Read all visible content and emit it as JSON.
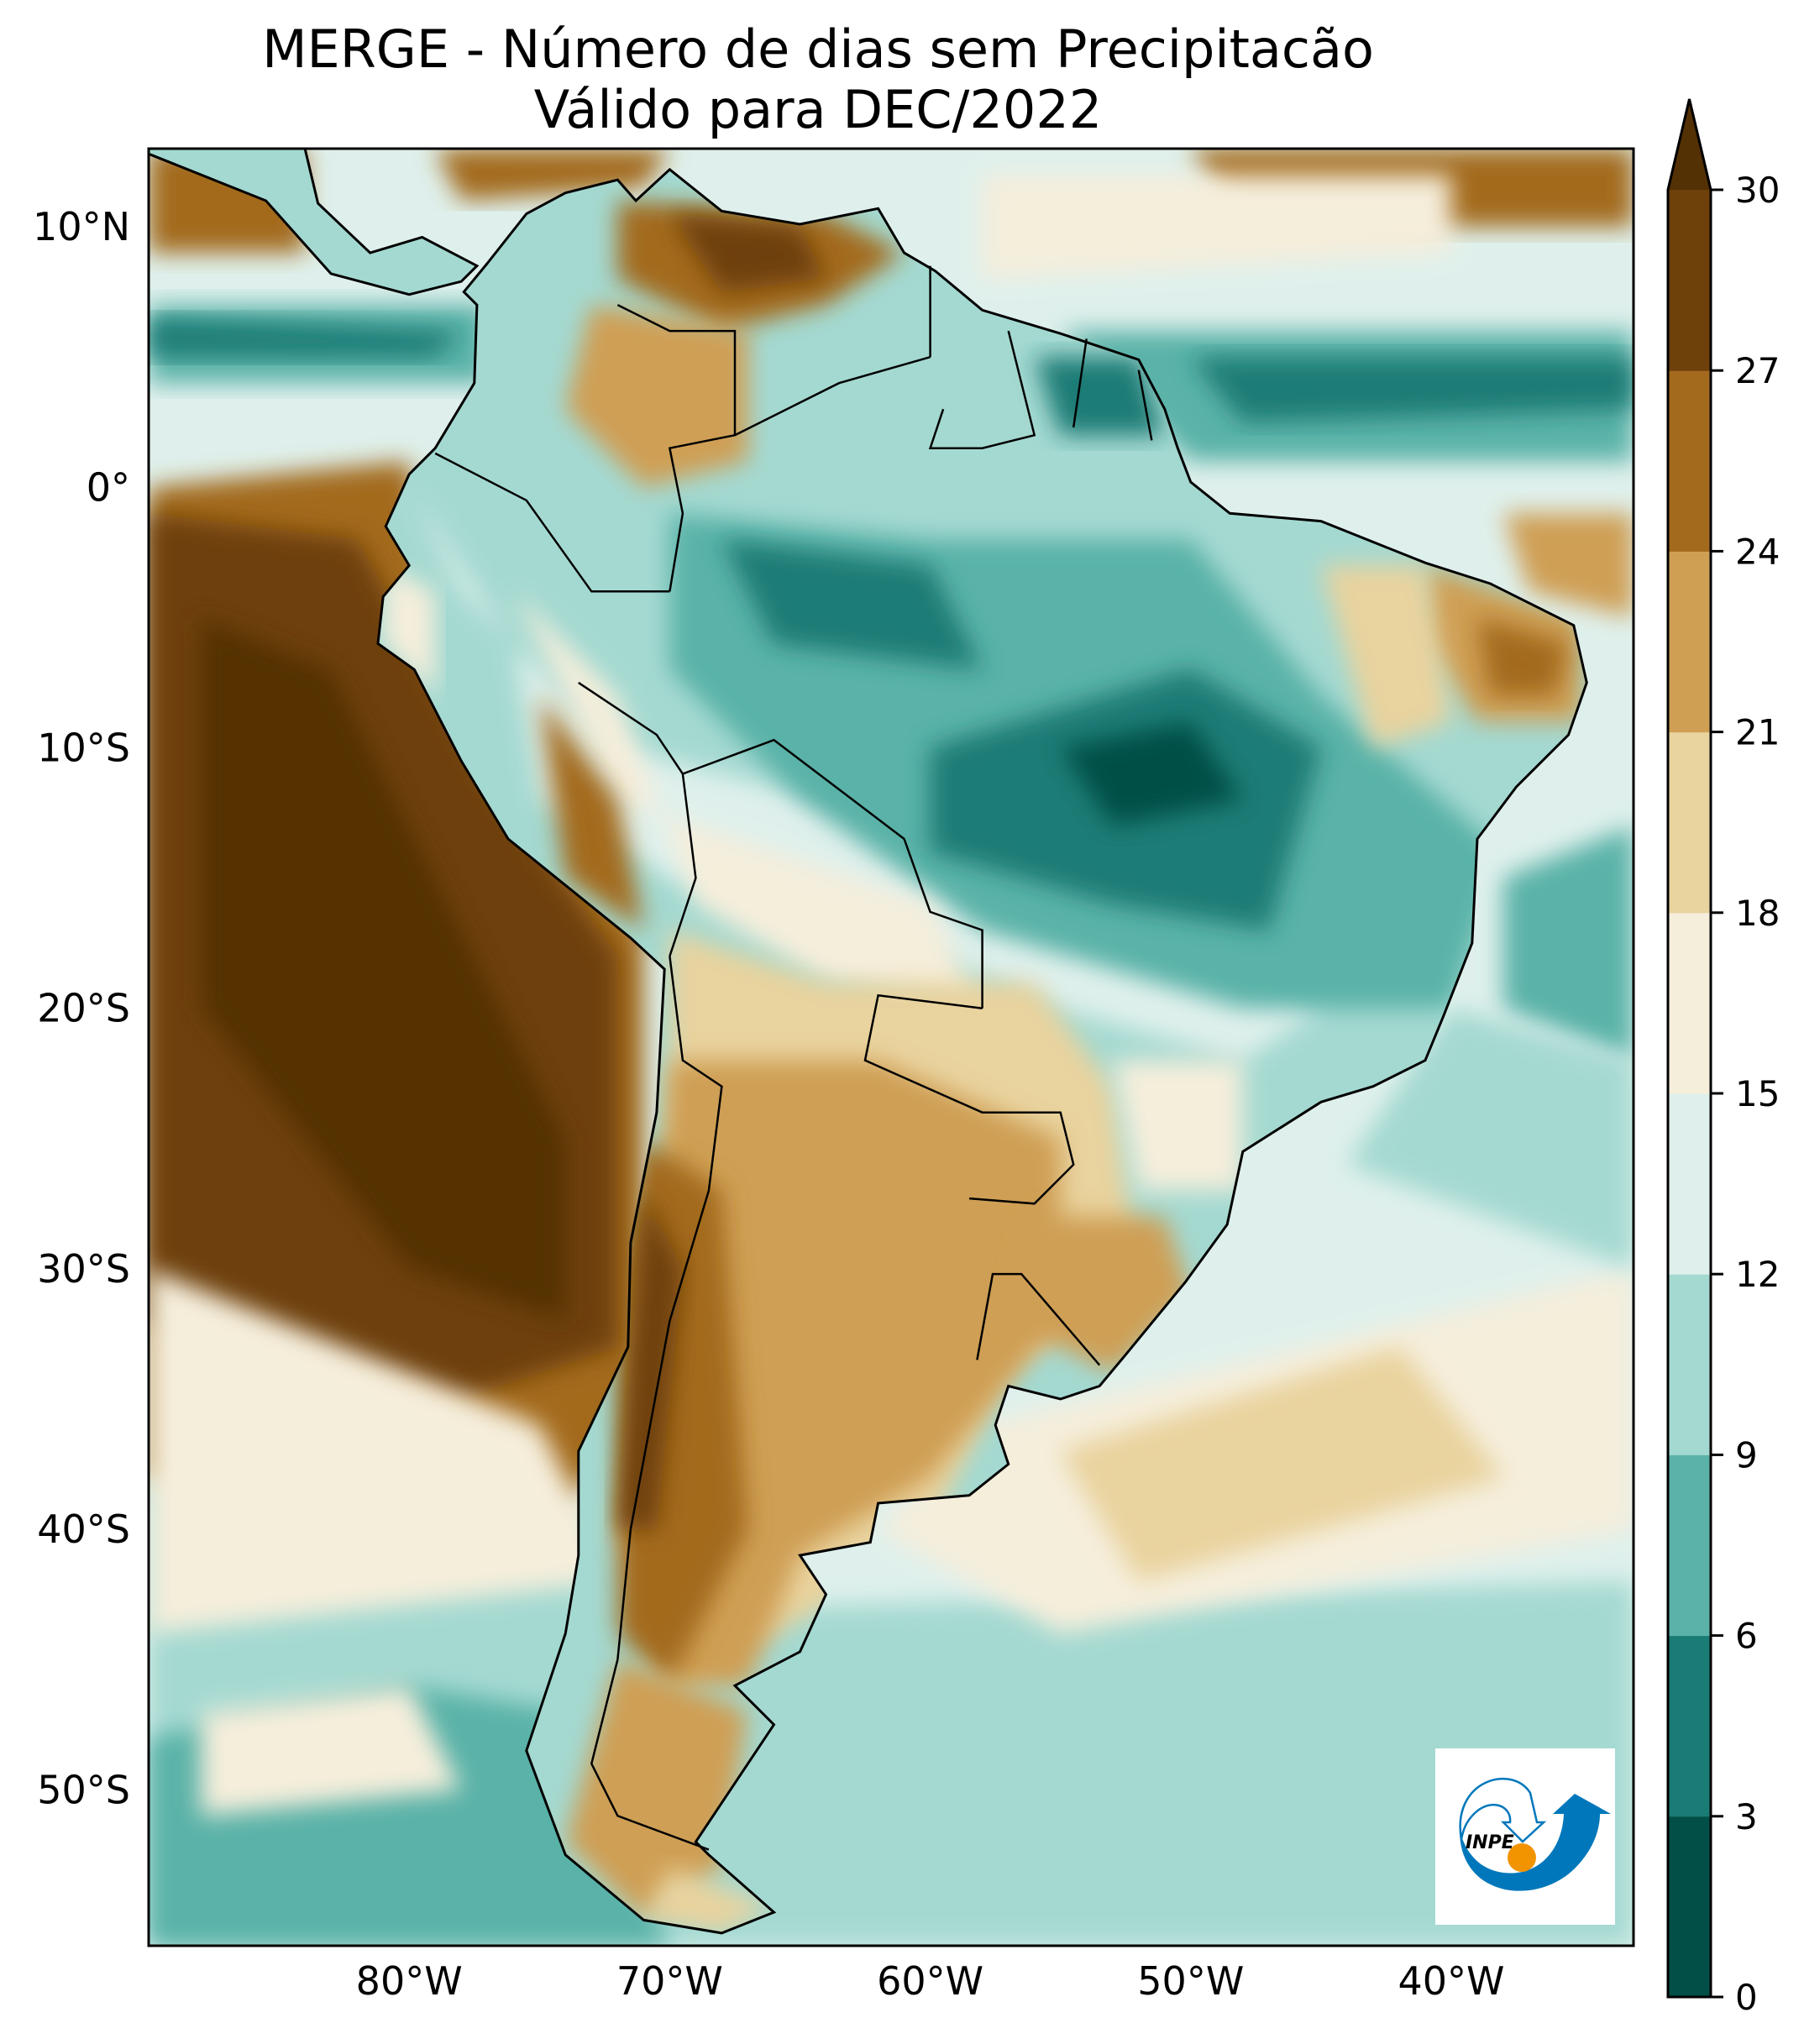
{
  "title": {
    "line1": "MERGE - Número de dias sem Precipitacão",
    "line2": "Válido para DEC/2022"
  },
  "map": {
    "projection": "PlateCarree",
    "extent": {
      "lon": [
        -90,
        -33
      ],
      "lat": [
        -56,
        13
      ]
    },
    "lat_ticks": [
      {
        "value": 10,
        "label": "10°N"
      },
      {
        "value": 0,
        "label": "0°"
      },
      {
        "value": -10,
        "label": "10°S"
      },
      {
        "value": -20,
        "label": "20°S"
      },
      {
        "value": -30,
        "label": "30°S"
      },
      {
        "value": -40,
        "label": "40°S"
      },
      {
        "value": -50,
        "label": "50°S"
      }
    ],
    "lon_ticks": [
      {
        "value": -80,
        "label": "80°W"
      },
      {
        "value": -70,
        "label": "70°W"
      },
      {
        "value": -60,
        "label": "60°W"
      },
      {
        "value": -50,
        "label": "50°W"
      },
      {
        "value": -40,
        "label": "40°W"
      }
    ]
  },
  "colorbar": {
    "levels": [
      0,
      3,
      6,
      9,
      12,
      15,
      18,
      21,
      24,
      27,
      30
    ],
    "labels": [
      "0",
      "3",
      "6",
      "9",
      "12",
      "15",
      "18",
      "21",
      "24",
      "27",
      "30"
    ],
    "colors": [
      "#024f47",
      "#1b7c76",
      "#5ab2a8",
      "#a4d9d1",
      "#dff0ec",
      "#f5eedb",
      "#e9d39e",
      "#cf9f54",
      "#a36a1e",
      "#6e400a"
    ],
    "extend_max_color": "#543005",
    "extend": "max"
  },
  "logo": {
    "text": "INPE",
    "blue": "#0077bb",
    "orange": "#f29400"
  }
}
